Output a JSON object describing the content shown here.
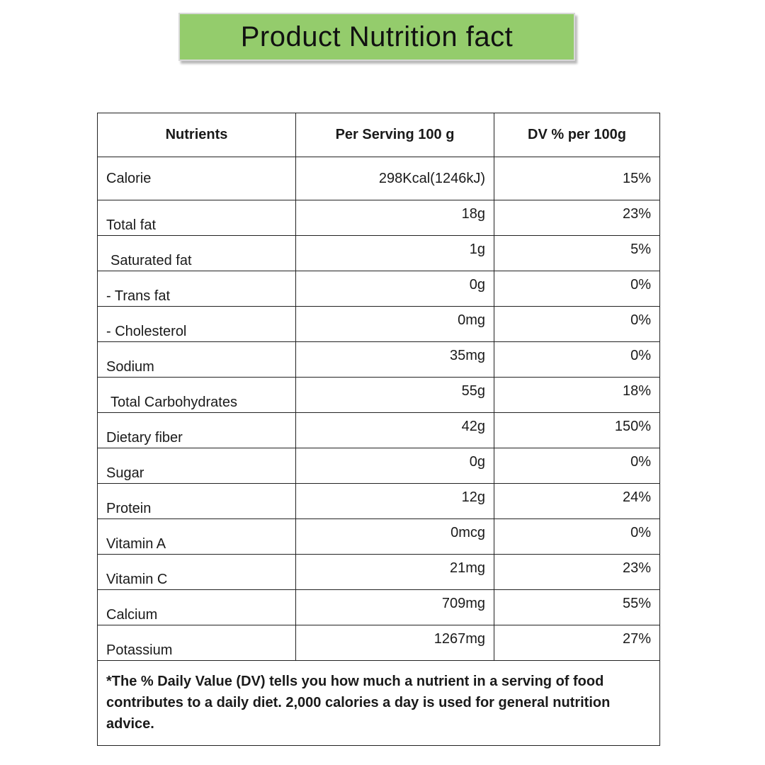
{
  "title": "Product Nutrition fact",
  "table": {
    "headers": [
      "Nutrients",
      "Per Serving 100 g",
      "DV % per 100g"
    ],
    "rows": [
      {
        "nutrient": "Calorie",
        "per_serving": "298Kcal(1246kJ)",
        "dv": "15%"
      },
      {
        "nutrient": "Total fat",
        "per_serving": "18g",
        "dv": "23%"
      },
      {
        "nutrient": "Saturated fat",
        "per_serving": "1g",
        "dv": "5%"
      },
      {
        "nutrient": "- Trans fat",
        "per_serving": "0g",
        "dv": "0%"
      },
      {
        "nutrient": "- Cholesterol",
        "per_serving": "0mg",
        "dv": "0%"
      },
      {
        "nutrient": "Sodium",
        "per_serving": "35mg",
        "dv": "0%"
      },
      {
        "nutrient": "Total Carbohydrates",
        "per_serving": "55g",
        "dv": "18%"
      },
      {
        "nutrient": "Dietary fiber",
        "per_serving": "42g",
        "dv": "150%"
      },
      {
        "nutrient": "Sugar",
        "per_serving": "0g",
        "dv": "0%"
      },
      {
        "nutrient": "Protein",
        "per_serving": "12g",
        "dv": "24%"
      },
      {
        "nutrient": "Vitamin A",
        "per_serving": "0mcg",
        "dv": "0%"
      },
      {
        "nutrient": "Vitamin C",
        "per_serving": "21mg",
        "dv": "23%"
      },
      {
        "nutrient": "Calcium",
        "per_serving": "709mg",
        "dv": "55%"
      },
      {
        "nutrient": "Potassium",
        "per_serving": "1267mg",
        "dv": "27%"
      }
    ],
    "footnote": "*The % Daily Value (DV) tells you how much a nutrient in a serving of food contributes to a daily diet. 2,000 calories a day is used for general nutrition advice."
  },
  "colors": {
    "banner": "#94cc6c",
    "border": "#222222"
  }
}
